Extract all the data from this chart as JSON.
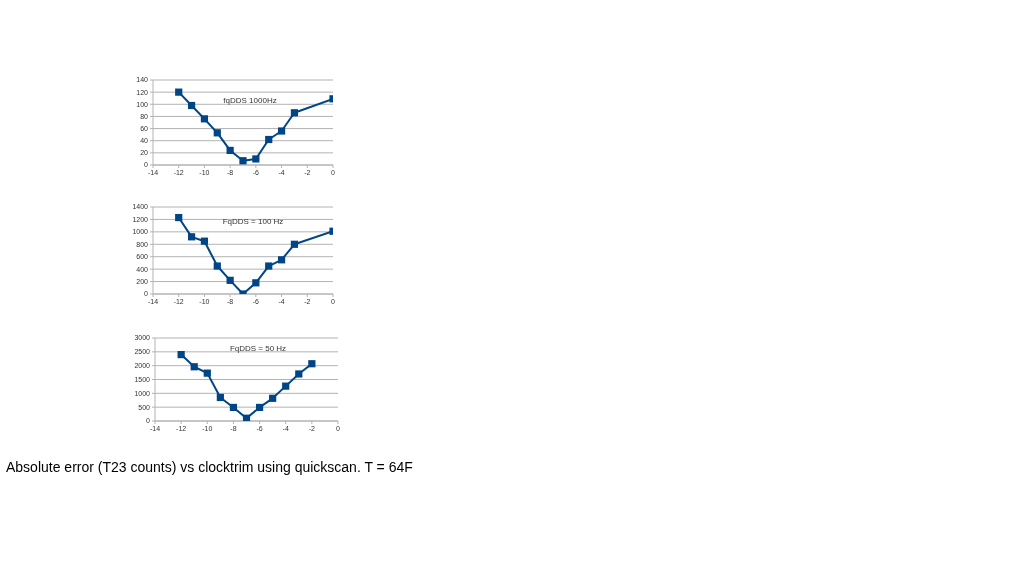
{
  "chart_data": [
    {
      "type": "line",
      "title": "fqDDS 1000Hz",
      "x": [
        -12,
        -11,
        -10,
        -9,
        -8,
        -7,
        -6,
        -5,
        -4,
        -3,
        0
      ],
      "series": [
        {
          "color": "#004586",
          "values": [
            120,
            98,
            76,
            53,
            24,
            7,
            10,
            42,
            56,
            86,
            109
          ]
        }
      ],
      "xlim": [
        -14,
        0
      ],
      "xticks": [
        -14,
        -12,
        -10,
        -8,
        -6,
        -4,
        -2,
        0
      ],
      "ylim": [
        0,
        140
      ],
      "yticks": [
        0,
        20,
        40,
        60,
        80,
        100,
        120,
        140
      ],
      "grid": "y",
      "marker": "square"
    },
    {
      "type": "line",
      "title": "FqDDS = 100 Hz",
      "x": [
        -12,
        -11,
        -10,
        -9,
        -8,
        -7,
        -6,
        -5,
        -4,
        -3,
        0
      ],
      "series": [
        {
          "color": "#004586",
          "values": [
            1230,
            920,
            850,
            450,
            220,
            0,
            180,
            450,
            550,
            800,
            1010
          ]
        }
      ],
      "xlim": [
        -14,
        0
      ],
      "xticks": [
        -14,
        -12,
        -10,
        -8,
        -6,
        -4,
        -2,
        0
      ],
      "ylim": [
        0,
        1400
      ],
      "yticks": [
        0,
        200,
        400,
        600,
        800,
        1000,
        1200,
        1400
      ],
      "grid": "y",
      "marker": "square"
    },
    {
      "type": "line",
      "title": "FqDDS = 50 Hz",
      "x": [
        -12,
        -11,
        -10,
        -9,
        -8,
        -7,
        -6,
        -5,
        -4,
        -3,
        -2
      ],
      "series": [
        {
          "color": "#004586",
          "values": [
            2400,
            1960,
            1730,
            850,
            490,
            100,
            490,
            820,
            1260,
            1700,
            2070
          ]
        }
      ],
      "xlim": [
        -14,
        0
      ],
      "xticks": [
        -14,
        -12,
        -10,
        -8,
        -6,
        -4,
        -2,
        0
      ],
      "ylim": [
        0,
        3000
      ],
      "yticks": [
        0,
        500,
        1000,
        1500,
        2000,
        2500,
        3000
      ],
      "grid": "y",
      "marker": "square",
      "annotations": [
        "Absolute error (T23 counts) vs clocktrim using quickscan. T = 64F"
      ]
    }
  ]
}
